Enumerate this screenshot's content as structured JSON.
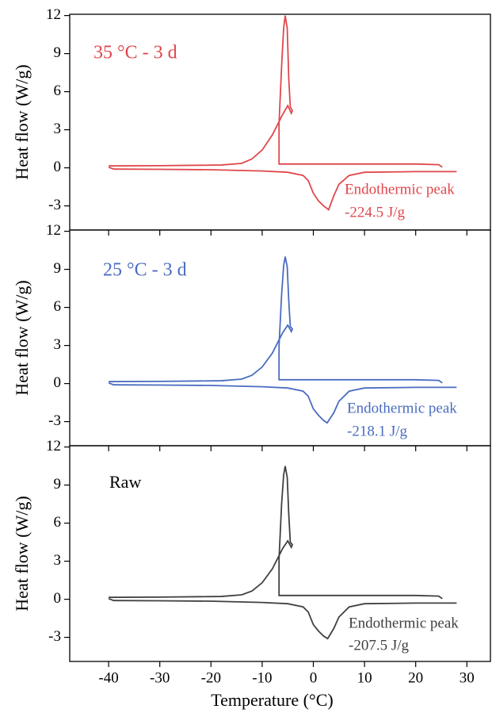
{
  "chart_data": [
    {
      "type": "line",
      "ylabel": "Heat flow (W/g)",
      "annotations": [
        "35 °C -  3 d",
        "Endothermic peak",
        "-224.5 J/g"
      ],
      "xlim": [
        -47.6,
        34.6
      ],
      "ylim": [
        -4.9,
        12.1
      ],
      "xticks": [
        -40,
        -30,
        -20,
        -10,
        0,
        10,
        20,
        30
      ],
      "yticks": [
        -3,
        0,
        3,
        6,
        9,
        12
      ],
      "series": [
        {
          "color": "#e0474c",
          "x": [
            25.2,
            24.5,
            20,
            0,
            -6.7,
            -6.7,
            -6.2,
            -5.8,
            -5.5,
            -5.1,
            -4.8,
            -4.5,
            -4.1,
            -4.3,
            -5,
            -6,
            -8,
            -10,
            -12,
            -14,
            -18,
            -30,
            -40
          ],
          "values": [
            0.05,
            0.25,
            0.3,
            0.3,
            0.3,
            3.5,
            8,
            11,
            12,
            11,
            7,
            4.8,
            4.5,
            4.3,
            4.9,
            4.2,
            2.6,
            1.4,
            0.7,
            0.35,
            0.22,
            0.17,
            0.15
          ]
        },
        {
          "color": "#e0474c",
          "x": [
            -40,
            -39,
            -30,
            -20,
            -10,
            -5,
            -2,
            -1,
            0,
            1,
            2,
            3,
            4,
            5,
            7,
            10,
            20,
            28
          ],
          "values": [
            0.05,
            -0.1,
            -0.12,
            -0.15,
            -0.25,
            -0.35,
            -0.6,
            -1,
            -2,
            -2.6,
            -3,
            -3.3,
            -2.2,
            -1.3,
            -0.6,
            -0.35,
            -0.3,
            -0.3
          ]
        }
      ]
    },
    {
      "type": "line",
      "ylabel": "Heat flow (W/g)",
      "annotations": [
        "25 °C - 3 d",
        "Endothermic peak",
        "-218.1 J/g"
      ],
      "xlim": [
        -47.6,
        34.6
      ],
      "ylim": [
        -4.9,
        12.1
      ],
      "xticks": [
        -40,
        -30,
        -20,
        -10,
        0,
        10,
        20,
        30
      ],
      "yticks": [
        -3,
        0,
        3,
        6,
        9,
        12
      ],
      "series": [
        {
          "color": "#4a6cc0",
          "x": [
            25.2,
            24.5,
            20,
            0,
            -6.7,
            -6.7,
            -6.2,
            -5.8,
            -5.5,
            -5.1,
            -4.8,
            -4.5,
            -4.1,
            -4.3,
            -5,
            -6,
            -8,
            -10,
            -12,
            -14,
            -18,
            -30,
            -40
          ],
          "values": [
            0.05,
            0.25,
            0.3,
            0.3,
            0.3,
            3,
            7,
            9.3,
            10,
            9.2,
            6.5,
            4.5,
            4.3,
            4.1,
            4.6,
            4,
            2.4,
            1.3,
            0.65,
            0.35,
            0.22,
            0.17,
            0.15
          ]
        },
        {
          "color": "#4a6cc0",
          "x": [
            -40,
            -39,
            -30,
            -20,
            -10,
            -5,
            -2,
            -1,
            0,
            1,
            2,
            2.7,
            4,
            5,
            7,
            10,
            20,
            28
          ],
          "values": [
            0.05,
            -0.1,
            -0.12,
            -0.15,
            -0.25,
            -0.35,
            -0.6,
            -1,
            -2,
            -2.5,
            -2.9,
            -3.1,
            -2.3,
            -1.4,
            -0.6,
            -0.35,
            -0.3,
            -0.3
          ]
        }
      ]
    },
    {
      "type": "line",
      "ylabel": "Heat flow (W/g)",
      "xlabel": "Temperature (°C)",
      "annotations": [
        "Raw",
        "Endothermic peak",
        "-207.5 J/g"
      ],
      "xlim": [
        -47.6,
        34.6
      ],
      "ylim": [
        -4.9,
        12.1
      ],
      "xticks": [
        -40,
        -30,
        -20,
        -10,
        0,
        10,
        20,
        30
      ],
      "yticks": [
        -3,
        0,
        3,
        6,
        9,
        12
      ],
      "series": [
        {
          "color": "#404040",
          "x": [
            25.2,
            24.5,
            20,
            0,
            -6.7,
            -6.7,
            -6.2,
            -5.8,
            -5.5,
            -5.1,
            -4.8,
            -4.5,
            -4.1,
            -4.3,
            -5,
            -6,
            -8,
            -10,
            -12,
            -14,
            -18,
            -30,
            -40
          ],
          "values": [
            0.05,
            0.25,
            0.3,
            0.3,
            0.3,
            3.2,
            7.5,
            9.8,
            10.5,
            9.6,
            6.7,
            4.5,
            4.3,
            4.1,
            4.6,
            4,
            2.4,
            1.3,
            0.65,
            0.35,
            0.22,
            0.17,
            0.15
          ]
        },
        {
          "color": "#404040",
          "x": [
            -40,
            -39,
            -30,
            -20,
            -10,
            -5,
            -2,
            -1,
            0,
            1,
            2,
            2.8,
            4,
            5,
            7,
            10,
            20,
            28
          ],
          "values": [
            0.05,
            -0.1,
            -0.12,
            -0.15,
            -0.25,
            -0.35,
            -0.6,
            -1,
            -2,
            -2.5,
            -2.9,
            -3.1,
            -2.3,
            -1.4,
            -0.6,
            -0.35,
            -0.3,
            -0.3
          ]
        }
      ]
    }
  ]
}
